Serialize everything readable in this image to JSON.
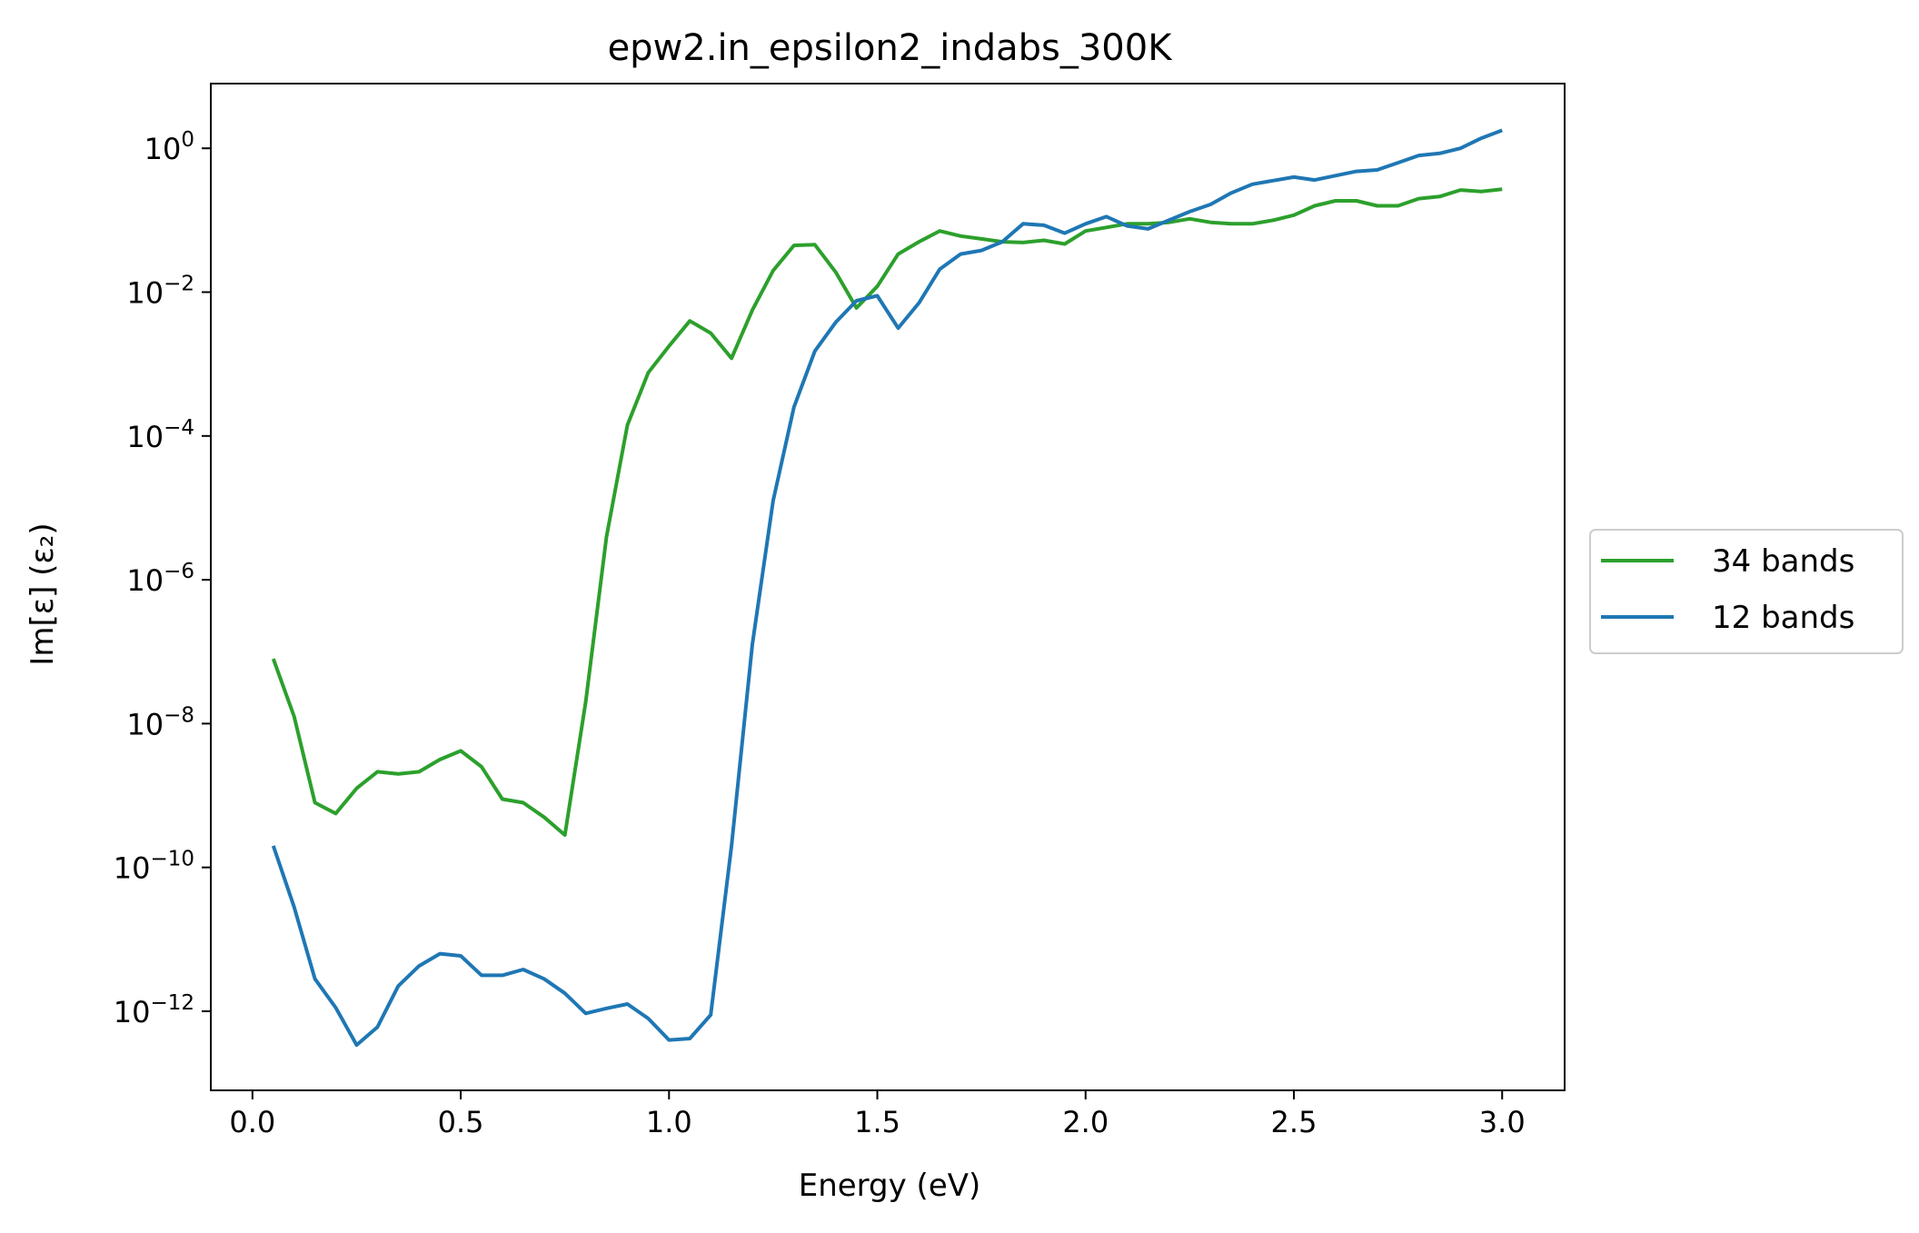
{
  "chart_data": {
    "type": "line",
    "title": "epw2.in_epsilon2_indabs_300K",
    "xlabel": "Energy (eV)",
    "ylabel": "Im[ε] (ε₂)",
    "yscale": "log",
    "xlim": [
      -0.1,
      3.15
    ],
    "ylim_log10": [
      -13.1,
      0.9
    ],
    "x_ticks": [
      0.0,
      0.5,
      1.0,
      1.5,
      2.0,
      2.5,
      3.0
    ],
    "x_tick_labels": [
      "0.0",
      "0.5",
      "1.0",
      "1.5",
      "2.0",
      "2.5",
      "3.0"
    ],
    "y_tick_exponents": [
      0,
      -2,
      -4,
      -6,
      -8,
      -10,
      -12
    ],
    "y_tick_base": "10",
    "y_tick_minus": "−",
    "grid": false,
    "legend_position": "right, outside",
    "x": [
      0.05,
      0.1,
      0.15,
      0.2,
      0.25,
      0.3,
      0.35,
      0.4,
      0.45,
      0.5,
      0.55,
      0.6,
      0.65,
      0.7,
      0.75,
      0.8,
      0.85,
      0.9,
      0.95,
      1.0,
      1.05,
      1.1,
      1.15,
      1.2,
      1.25,
      1.3,
      1.35,
      1.4,
      1.45,
      1.5,
      1.55,
      1.6,
      1.65,
      1.7,
      1.75,
      1.8,
      1.85,
      1.9,
      1.95,
      2.0,
      2.05,
      2.1,
      2.15,
      2.2,
      2.25,
      2.3,
      2.35,
      2.4,
      2.45,
      2.5,
      2.55,
      2.6,
      2.65,
      2.7,
      2.75,
      2.8,
      2.85,
      2.9,
      2.95,
      3.0
    ],
    "series": [
      {
        "name": "34 bands",
        "color": "#2ca02c",
        "log10_values": [
          -7.1,
          -7.9,
          -9.1,
          -9.25,
          -8.9,
          -8.67,
          -8.7,
          -8.67,
          -8.5,
          -8.38,
          -8.6,
          -9.05,
          -9.1,
          -9.3,
          -9.55,
          -7.7,
          -5.4,
          -3.85,
          -3.12,
          -2.75,
          -2.4,
          -2.57,
          -2.92,
          -2.25,
          -1.7,
          -1.35,
          -1.34,
          -1.72,
          -2.22,
          -1.92,
          -1.47,
          -1.3,
          -1.15,
          -1.22,
          -1.26,
          -1.3,
          -1.31,
          -1.28,
          -1.33,
          -1.15,
          -1.1,
          -1.05,
          -1.05,
          -1.03,
          -0.98,
          -1.03,
          -1.05,
          -1.05,
          -1.0,
          -0.93,
          -0.8,
          -0.73,
          -0.73,
          -0.8,
          -0.8,
          -0.7,
          -0.67,
          -0.58,
          -0.6,
          -0.57
        ]
      },
      {
        "name": "12 bands",
        "color": "#1f77b4",
        "log10_values": [
          -9.7,
          -10.55,
          -11.55,
          -11.95,
          -12.47,
          -12.22,
          -11.65,
          -11.37,
          -11.2,
          -11.23,
          -11.5,
          -11.5,
          -11.42,
          -11.55,
          -11.75,
          -12.03,
          -11.96,
          -11.9,
          -12.1,
          -12.4,
          -12.38,
          -12.05,
          -9.7,
          -6.9,
          -4.9,
          -3.6,
          -2.82,
          -2.42,
          -2.12,
          -2.05,
          -2.5,
          -2.15,
          -1.68,
          -1.47,
          -1.42,
          -1.3,
          -1.05,
          -1.07,
          -1.18,
          -1.05,
          -0.95,
          -1.08,
          -1.12,
          -1.0,
          -0.88,
          -0.78,
          -0.62,
          -0.5,
          -0.45,
          -0.4,
          -0.44,
          -0.38,
          -0.32,
          -0.3,
          -0.2,
          -0.1,
          -0.07,
          0.0,
          0.14,
          0.25
        ]
      }
    ]
  }
}
